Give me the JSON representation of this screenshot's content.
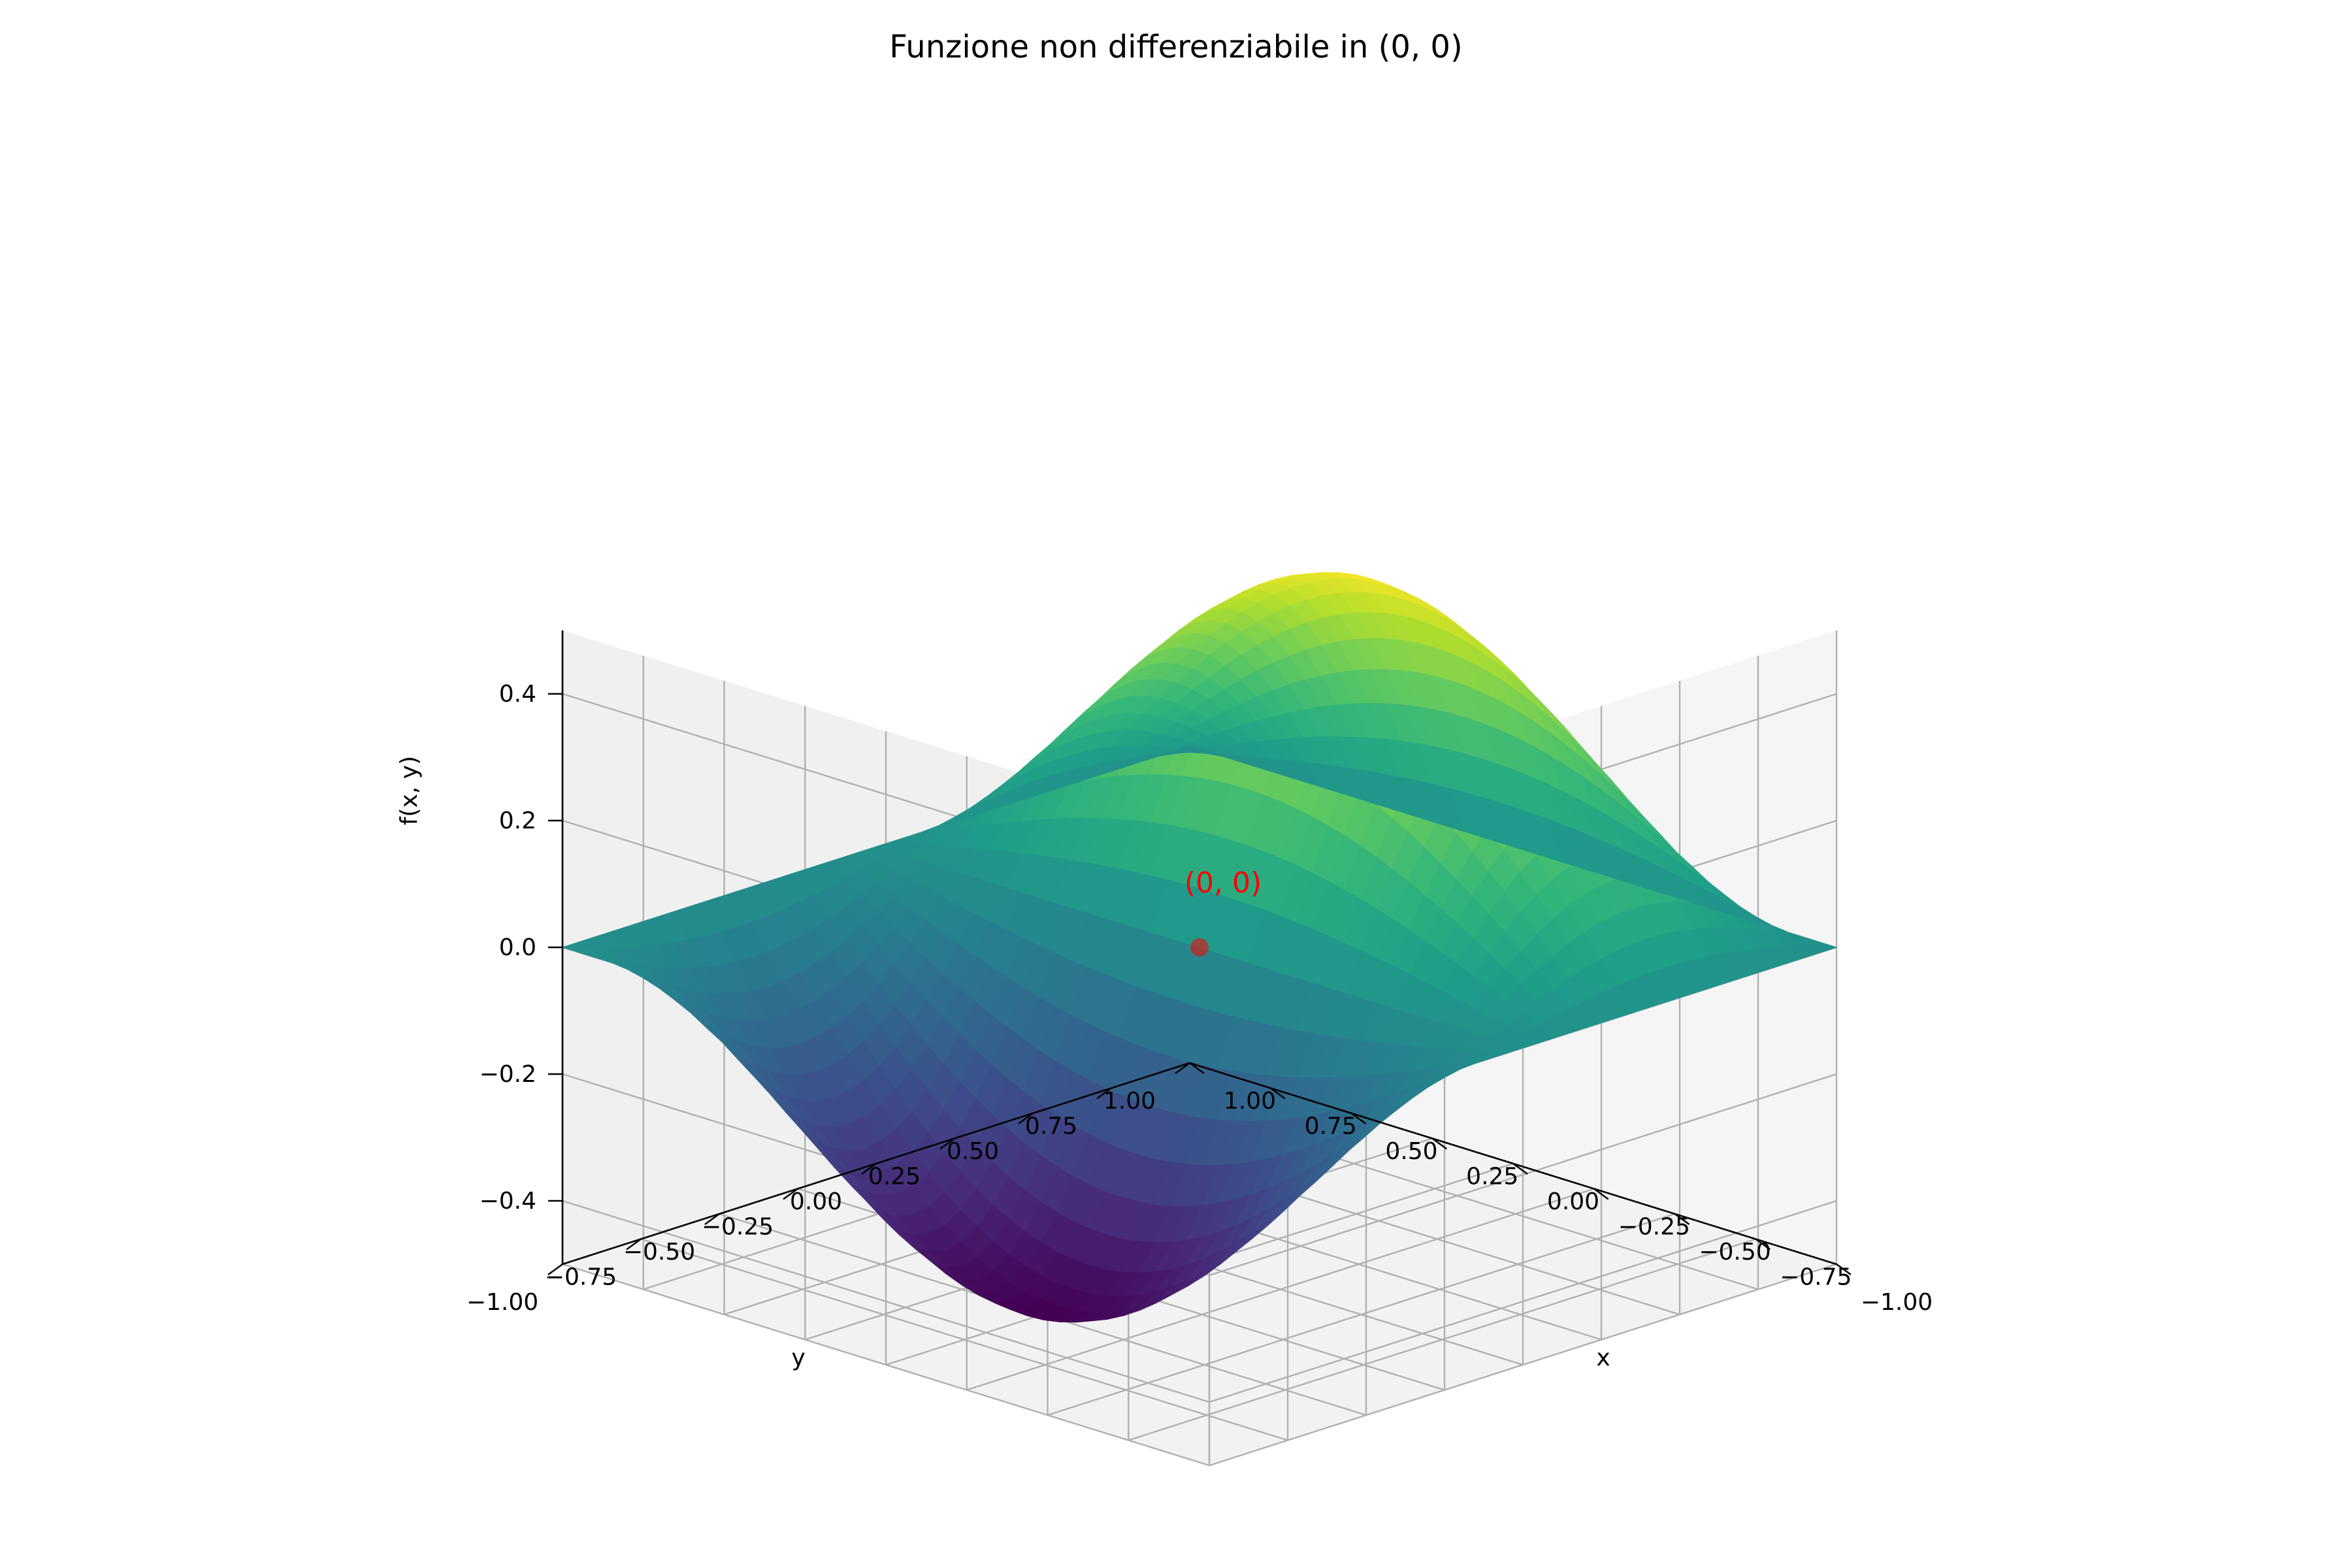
{
  "chart_data": {
    "type": "surface3d",
    "title": "Funzione non differenziabile in (0, 0)",
    "xlabel": "x",
    "ylabel": "y",
    "zlabel": "f(x, y)",
    "xlim": [
      -1,
      1
    ],
    "ylim": [
      -1,
      1
    ],
    "zlim": [
      -0.5,
      0.5
    ],
    "x_ticks": [
      "−1.00",
      "−0.75",
      "−0.50",
      "−0.25",
      "0.00",
      "0.25",
      "0.50",
      "0.75",
      "1.00"
    ],
    "y_ticks": [
      "−1.00",
      "−0.75",
      "−0.50",
      "−0.25",
      "0.00",
      "0.25",
      "0.50",
      "0.75",
      "1.00"
    ],
    "z_ticks": [
      "−0.4",
      "−0.2",
      "0.0",
      "0.2",
      "0.4"
    ],
    "grid": true,
    "colormap": "viridis",
    "surface": {
      "x_range": [
        -1,
        1
      ],
      "y_range": [
        -1,
        1
      ],
      "z_range": [
        -0.5,
        0.5
      ]
    },
    "highlight_point": {
      "x": 0,
      "y": 0,
      "z": 0,
      "label": "(0, 0)",
      "color": "#ff0000"
    }
  }
}
